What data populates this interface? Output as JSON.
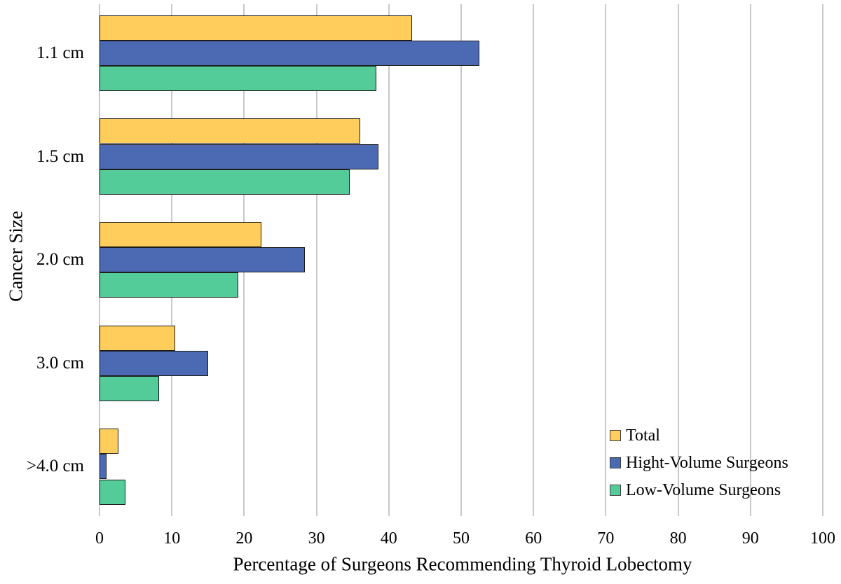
{
  "chart_data": {
    "type": "bar",
    "orientation": "horizontal",
    "title": "",
    "xlabel": "Percentage of Surgeons Recommending Thyroid Lobectomy",
    "ylabel": "Cancer Size",
    "xlim": [
      0,
      100
    ],
    "xticks": [
      0,
      10,
      20,
      30,
      40,
      50,
      60,
      70,
      80,
      90,
      100
    ],
    "grid": "vertical",
    "gridline_color": "#c9c9c9",
    "bar_border_color": "#1c1c1c",
    "legend_position": "inside-right-bottom",
    "categories": [
      "1.1 cm",
      "1.5 cm",
      "2.0 cm",
      "3.0 cm",
      ">4.0 cm"
    ],
    "series": [
      {
        "name": "Total",
        "color": "#fecd5b",
        "values": [
          43.2,
          36.0,
          22.4,
          10.5,
          2.6
        ]
      },
      {
        "name": "Hight-Volume Surgeons",
        "color": "#4c6ab3",
        "values": [
          52.5,
          38.6,
          28.4,
          15.0,
          1.0
        ]
      },
      {
        "name": "Low-Volume Surgeons",
        "color": "#54cc99",
        "values": [
          38.3,
          34.6,
          19.2,
          8.2,
          3.6
        ]
      }
    ]
  }
}
